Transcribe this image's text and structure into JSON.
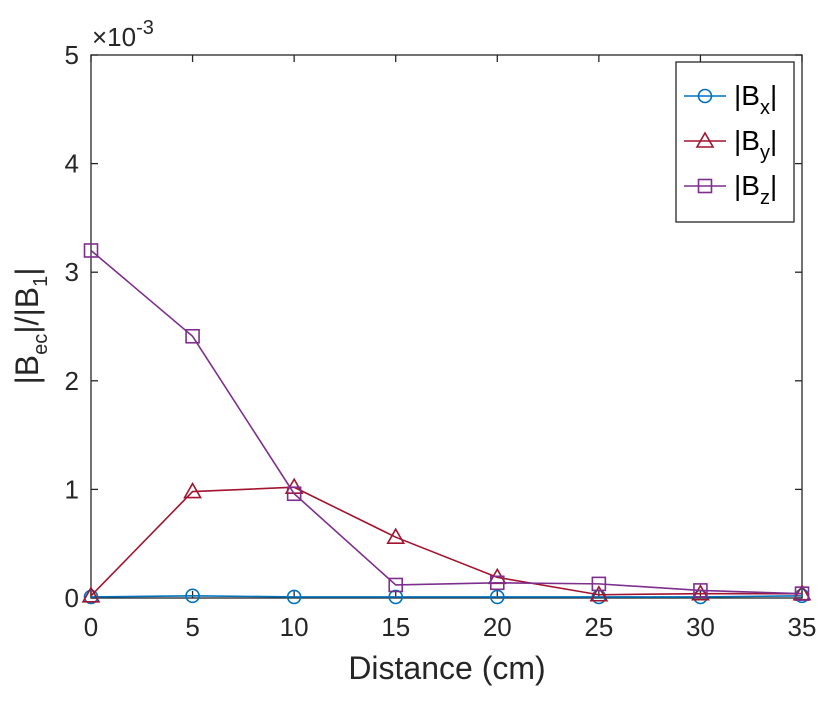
{
  "chart_data": {
    "type": "line",
    "title": "",
    "xlabel": "Distance (cm)",
    "ylabel": {
      "base": "|B",
      "sub1": "ec",
      "mid": "|/|B",
      "sub2": "1",
      "end": "|"
    },
    "x": [
      0,
      5,
      10,
      15,
      20,
      25,
      30,
      35
    ],
    "xlim": [
      0,
      35
    ],
    "ylim": [
      0,
      5
    ],
    "xticks": [
      "0",
      "5",
      "10",
      "15",
      "20",
      "25",
      "30",
      "35"
    ],
    "yticks": [
      "0",
      "1",
      "2",
      "3",
      "4",
      "5"
    ],
    "y_multiplier": {
      "base": "×10",
      "exp": "-3"
    },
    "legend_position": "top-right",
    "series": [
      {
        "name": "|Bx|",
        "label": {
          "pre": "|B",
          "sub": "x",
          "post": "|"
        },
        "color": "#0072BD",
        "marker": "circle",
        "values": [
          0.01,
          0.02,
          0.01,
          0.01,
          0.01,
          0.01,
          0.01,
          0.02
        ]
      },
      {
        "name": "|By|",
        "label": {
          "pre": "|B",
          "sub": "y",
          "post": "|"
        },
        "color": "#A2142F",
        "marker": "triangle",
        "values": [
          0.02,
          0.98,
          1.02,
          0.56,
          0.19,
          0.03,
          0.04,
          0.04
        ]
      },
      {
        "name": "|Bz|",
        "label": {
          "pre": "|B",
          "sub": "z",
          "post": "|"
        },
        "color": "#7E2F8E",
        "marker": "square",
        "values": [
          3.2,
          2.41,
          0.96,
          0.12,
          0.14,
          0.13,
          0.07,
          0.04
        ]
      }
    ]
  }
}
